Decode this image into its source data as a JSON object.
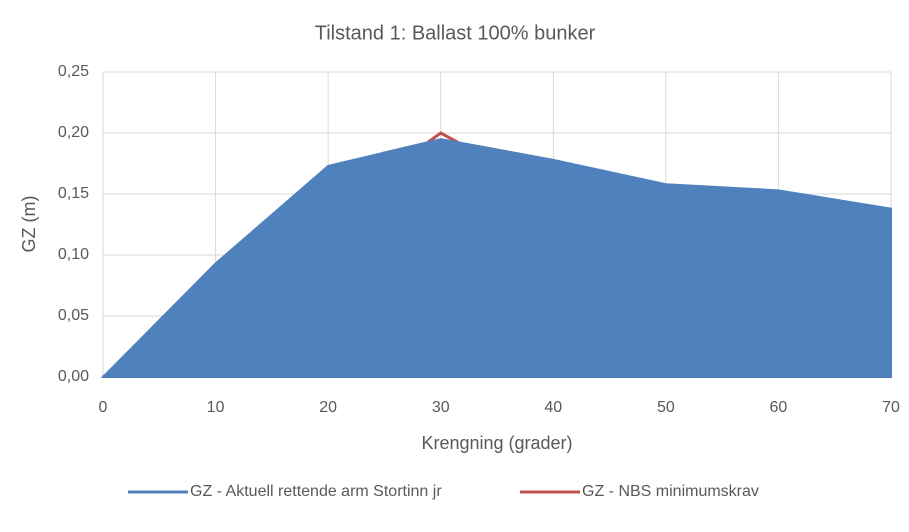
{
  "chart_data": {
    "type": "area",
    "title": "Tilstand 1: Ballast 100% bunker",
    "xlabel": "Krengning (grader)",
    "ylabel": "GZ (m)",
    "series": [
      {
        "name": "GZ - Aktuell rettende arm Stortinn jr",
        "type": "area",
        "color": "#4f81bd",
        "x": [
          0,
          10,
          20,
          30,
          40,
          50,
          60,
          70
        ],
        "values": [
          0,
          0.093,
          0.173,
          0.195,
          0.178,
          0.158,
          0.153,
          0.138
        ]
      },
      {
        "name": "GZ -  NBS minimumskrav",
        "type": "line",
        "color": "#c0504d",
        "x": [
          0,
          30,
          70
        ],
        "values": [
          0,
          0.2,
          0
        ]
      }
    ],
    "xlim": [
      0,
      70
    ],
    "xticks": [
      0,
      10,
      20,
      30,
      40,
      50,
      60,
      70
    ],
    "ylim": [
      0,
      0.25
    ],
    "yticks": [
      {
        "value": 0,
        "label": "0,00"
      },
      {
        "value": 0.05,
        "label": "0,05"
      },
      {
        "value": 0.1,
        "label": "0,10"
      },
      {
        "value": 0.15,
        "label": "0,15"
      },
      {
        "value": 0.2,
        "label": "0,20"
      },
      {
        "value": 0.25,
        "label": "0,25"
      }
    ],
    "grid": true,
    "legend": "bottom"
  }
}
